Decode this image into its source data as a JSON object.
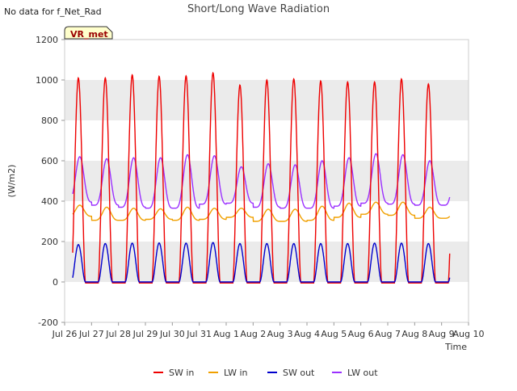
{
  "chart_data": {
    "type": "line",
    "title": "Short/Long Wave Radiation",
    "corner_note": "No data for f_Net_Rad",
    "badge": "VR_met",
    "xlabel": "Time",
    "ylabel": "(W/m2)",
    "x_range_days": [
      0,
      15
    ],
    "x_ticks": [
      {
        "day": 0,
        "label": "Jul 26"
      },
      {
        "day": 1,
        "label": "Jul 27"
      },
      {
        "day": 2,
        "label": "Jul 28"
      },
      {
        "day": 3,
        "label": "Jul 29"
      },
      {
        "day": 4,
        "label": "Jul 30"
      },
      {
        "day": 5,
        "label": "Jul 31"
      },
      {
        "day": 6,
        "label": "Aug 1"
      },
      {
        "day": 7,
        "label": "Aug 2"
      },
      {
        "day": 8,
        "label": "Aug 3"
      },
      {
        "day": 9,
        "label": "Aug 4"
      },
      {
        "day": 10,
        "label": "Aug 5"
      },
      {
        "day": 11,
        "label": "Aug 6"
      },
      {
        "day": 12,
        "label": "Aug 7"
      },
      {
        "day": 13,
        "label": "Aug 8"
      },
      {
        "day": 14,
        "label": "Aug 9"
      },
      {
        "day": 15,
        "label": "Aug 10"
      }
    ],
    "ylim": [
      -200,
      1200
    ],
    "y_ticks": [
      -200,
      0,
      200,
      400,
      600,
      800,
      1000,
      1200
    ],
    "grid": "horizontal bands",
    "legend_position": "bottom",
    "data_day_range": [
      0.3,
      14.3
    ],
    "series": [
      {
        "name": "SW in",
        "color": "#ee0000",
        "daily_peak": [
          1010,
          1010,
          1025,
          1018,
          1020,
          1035,
          975,
          1000,
          1005,
          995,
          990,
          990,
          1005,
          980
        ],
        "night_value": -5
      },
      {
        "name": "LW in",
        "color": "#f0a000",
        "daily_peak": [
          380,
          370,
          365,
          362,
          370,
          365,
          365,
          360,
          360,
          375,
          390,
          395,
          395,
          370
        ],
        "daily_min": [
          325,
          305,
          305,
          310,
          305,
          310,
          320,
          300,
          300,
          305,
          320,
          335,
          330,
          315
        ]
      },
      {
        "name": "SW out",
        "color": "#0000cc",
        "daily_peak": [
          185,
          190,
          192,
          193,
          192,
          195,
          190,
          190,
          190,
          190,
          190,
          192,
          192,
          190
        ],
        "night_value": 0
      },
      {
        "name": "LW out",
        "color": "#9b30ff",
        "daily_peak": [
          620,
          610,
          615,
          615,
          630,
          625,
          570,
          585,
          580,
          600,
          615,
          635,
          630,
          600
        ],
        "daily_min": [
          395,
          380,
          370,
          365,
          365,
          385,
          390,
          370,
          365,
          365,
          375,
          390,
          385,
          380
        ]
      }
    ],
    "colors": {
      "band": "#ebebeb",
      "plot_bg": "#ffffff",
      "badge_bg": "#ffffcc",
      "badge_text": "#990000"
    }
  }
}
